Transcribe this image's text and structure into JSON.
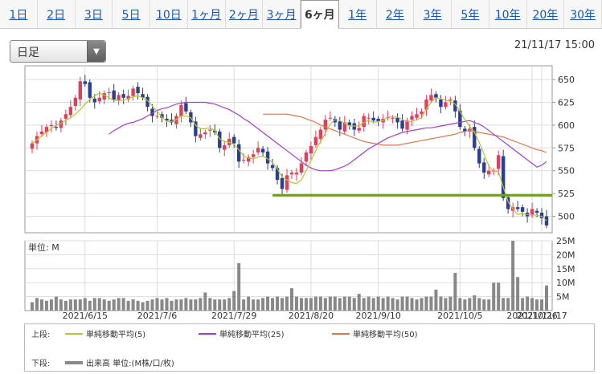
{
  "tabs": [
    "1日",
    "2日",
    "3日",
    "5日",
    "10日",
    "1ヶ月",
    "2ヶ月",
    "3ヶ月",
    "6ヶ月",
    "1年",
    "2年",
    "3年",
    "5年",
    "10年",
    "20年",
    "30年"
  ],
  "active_tab": "6ヶ月",
  "period_select": {
    "value": "日足",
    "icon": "dropdown-triangle-icon"
  },
  "timestamp": "21/11/17 15:00",
  "volume_unit": "単位: M",
  "legend": {
    "upper_label": "上段:",
    "lower_label": "下段:",
    "items": [
      {
        "label": "単純移動平均(5)",
        "color": "#b8c43a"
      },
      {
        "label": "単純移動平均(25)",
        "color": "#a040c8"
      },
      {
        "label": "単純移動平均(50)",
        "color": "#d97850"
      }
    ],
    "volume_item": {
      "label": "出来高 単位:(M株/口/枚)",
      "color": "#888888"
    }
  },
  "chart_data": [
    {
      "type": "candlestick",
      "x_tick_labels": [
        "2021/6/15",
        "2021/7/6",
        "2021/7/29",
        "2021/8/20",
        "2021/9/10",
        "2021/10/5",
        "2021/10/26",
        "2021/11/17"
      ],
      "y_ticks": [
        500,
        525,
        550,
        575,
        600,
        625,
        650
      ],
      "ylim": [
        482,
        665
      ],
      "colors": {
        "up": "#e0405a",
        "down": "#2a3f8f",
        "support": "#6ea020"
      },
      "support_line": {
        "value": 523,
        "from": "2021/8/11",
        "to": "2021/11/17"
      },
      "close": [
        580,
        588,
        593,
        598,
        600,
        597,
        605,
        612,
        620,
        630,
        648,
        645,
        630,
        625,
        630,
        635,
        636,
        628,
        633,
        630,
        632,
        640,
        635,
        630,
        620,
        610,
        610,
        608,
        605,
        603,
        610,
        622,
        615,
        603,
        588,
        590,
        592,
        595,
        592,
        575,
        578,
        585,
        580,
        560,
        562,
        565,
        568,
        575,
        570,
        558,
        553,
        540,
        530,
        545,
        548,
        548,
        558,
        570,
        577,
        587,
        595,
        606,
        608,
        603,
        595,
        603,
        600,
        595,
        597,
        610,
        608,
        605,
        604,
        607,
        609,
        608,
        603,
        596,
        605,
        610,
        612,
        615,
        628,
        633,
        630,
        620,
        625,
        628,
        615,
        598,
        593,
        596,
        575,
        558,
        548,
        550,
        550,
        567,
        520,
        508,
        510,
        508,
        505,
        500,
        508,
        504,
        498,
        490
      ],
      "sma_5": [
        580,
        584,
        588,
        592,
        596,
        600,
        602,
        605,
        608,
        612,
        617,
        623,
        628,
        632,
        635,
        633,
        630,
        627,
        627,
        627,
        629,
        631,
        632,
        630,
        627,
        621,
        615,
        609,
        604,
        604,
        606,
        610,
        610,
        608,
        600,
        596,
        596,
        597,
        594,
        585,
        582,
        581,
        579,
        573,
        566,
        564,
        563,
        565,
        566,
        563,
        559,
        552,
        543,
        540,
        537,
        536,
        540,
        550,
        561,
        572,
        582,
        591,
        601,
        606,
        605,
        602,
        599,
        599,
        599,
        603,
        605,
        603,
        604,
        605,
        609,
        609,
        609,
        606,
        604,
        604,
        606,
        608,
        618,
        625,
        630,
        629,
        627,
        626,
        623,
        615,
        606,
        599,
        592,
        581,
        568,
        555,
        549,
        549,
        532,
        516,
        508,
        502,
        503,
        502,
        502,
        501,
        500,
        495
      ],
      "sma_25": [
        590,
        594,
        597,
        600,
        602,
        603,
        605,
        607,
        610,
        613,
        616,
        618,
        619,
        621,
        623,
        624,
        625,
        625,
        625,
        625,
        625,
        624,
        623,
        621,
        619,
        617,
        614,
        611,
        607,
        604,
        600,
        596,
        592,
        588,
        584,
        580,
        576,
        572,
        568,
        564,
        560,
        556,
        553,
        551,
        550,
        550,
        550,
        551,
        553,
        555,
        558,
        562,
        566,
        570,
        574,
        577,
        580,
        583,
        586,
        588,
        590,
        592,
        593,
        594,
        595,
        596,
        597,
        597,
        598,
        599,
        600,
        601,
        602,
        603,
        604,
        605,
        603,
        601,
        598,
        594,
        590,
        586,
        582,
        578,
        574,
        570,
        566,
        562,
        558,
        554,
        556,
        560
      ],
      "sma_50": [
        612,
        612,
        612,
        612,
        612,
        612,
        611,
        610,
        609,
        607,
        605,
        603,
        600,
        598,
        596,
        594,
        592,
        590,
        588,
        586,
        584,
        582,
        581,
        580,
        579,
        578,
        578,
        578,
        578,
        579,
        580,
        581,
        582,
        583,
        584,
        585,
        586,
        587,
        588,
        589,
        590,
        592,
        593,
        594,
        593,
        592,
        591,
        590,
        589,
        588,
        587,
        585,
        583,
        581,
        579,
        577,
        575,
        573,
        572,
        570
      ],
      "volume_ylim": [
        0,
        25
      ],
      "volume_ticks": [
        5,
        10,
        15,
        20,
        25
      ],
      "volume": [
        3,
        4.5,
        4,
        3.5,
        4,
        5,
        4,
        3.5,
        4,
        4,
        4,
        4.5,
        3.5,
        4.5,
        4.5,
        4,
        3.5,
        4,
        4.5,
        4.5,
        3.5,
        4,
        3.5,
        3,
        3.5,
        4,
        4.5,
        4,
        4.5,
        3.5,
        4,
        4,
        4.5,
        4,
        4,
        4.5,
        6.5,
        4.5,
        4,
        4,
        4,
        4.5,
        7,
        17,
        4,
        5,
        4,
        4,
        4.5,
        5,
        4.5,
        5,
        4.5,
        5,
        8,
        5,
        4.5,
        4.5,
        4.5,
        5,
        5,
        4.5,
        5,
        5,
        4.5,
        5,
        5,
        4.5,
        6,
        4.5,
        5,
        4.5,
        5,
        4.5,
        5,
        4.5,
        4,
        5,
        5,
        4.5,
        4,
        4.5,
        5,
        5,
        7.5,
        5,
        4.5,
        5,
        13.5,
        4.5,
        4,
        4.5,
        5.5,
        4.5,
        4,
        4,
        10,
        10,
        4.5,
        4.5,
        25,
        12,
        4.5,
        5,
        4.5,
        4,
        4,
        9
      ]
    }
  ]
}
